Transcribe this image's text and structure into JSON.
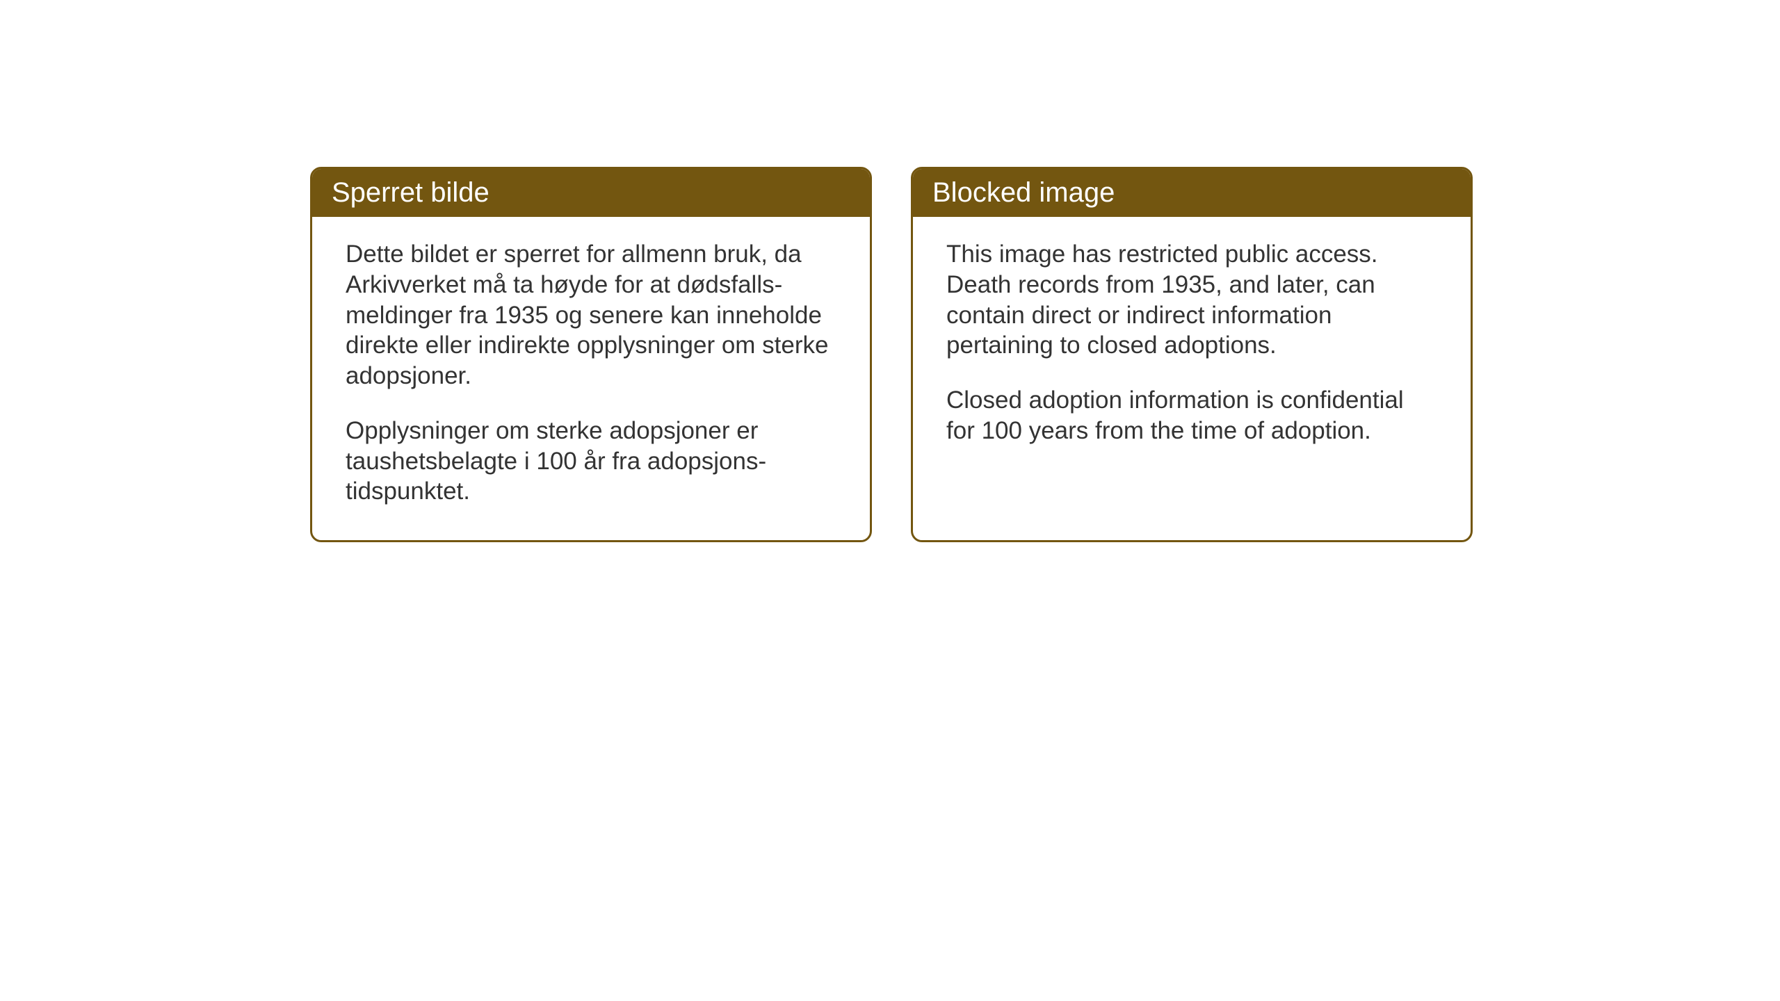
{
  "layout": {
    "background_color": "#ffffff",
    "card_border_color": "#735610",
    "card_header_bg": "#735610",
    "card_header_text_color": "#ffffff",
    "card_body_text_color": "#333333",
    "card_border_radius": 16,
    "card_border_width": 3,
    "header_fontsize": 40,
    "body_fontsize": 35
  },
  "cards": {
    "norwegian": {
      "title": "Sperret bilde",
      "paragraph1": "Dette bildet er sperret for allmenn bruk, da Arkivverket må ta høyde for at dødsfalls-meldinger fra 1935 og senere kan inneholde direkte eller indirekte opplysninger om sterke adopsjoner.",
      "paragraph2": "Opplysninger om sterke adopsjoner er taushetsbelagte i 100 år fra adopsjons-tidspunktet."
    },
    "english": {
      "title": "Blocked image",
      "paragraph1": "This image has restricted public access. Death records from 1935, and later, can contain direct or indirect information pertaining to closed adoptions.",
      "paragraph2": "Closed adoption information is confidential for 100 years from the time of adoption."
    }
  }
}
